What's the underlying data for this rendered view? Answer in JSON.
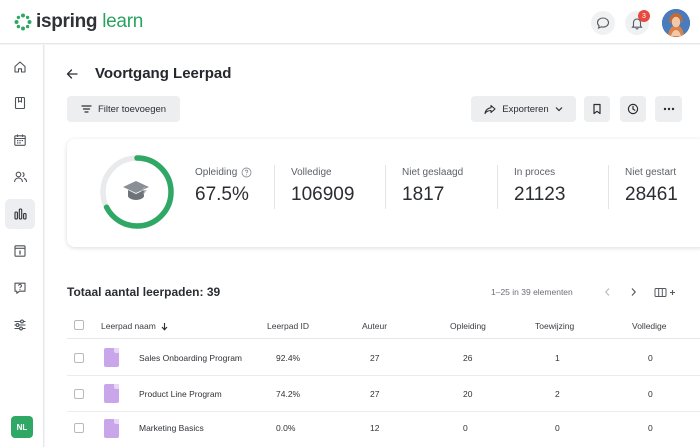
{
  "app": {
    "logo_brand": "ispring",
    "logo_product": "learn"
  },
  "header": {
    "notification_count": "3"
  },
  "sidebar": {
    "items": [
      {
        "icon": "home-icon"
      },
      {
        "icon": "book-icon"
      },
      {
        "icon": "calendar-icon"
      },
      {
        "icon": "users-icon"
      },
      {
        "icon": "bar-chart-icon",
        "active": true
      },
      {
        "icon": "info-card-icon"
      },
      {
        "icon": "help-icon"
      },
      {
        "icon": "sliders-icon"
      }
    ],
    "language": "NL"
  },
  "page": {
    "title": "Voortgang Leerpad",
    "filter_button": "Filter toevoegen",
    "export_button": "Exporteren"
  },
  "stats": {
    "progress_fraction": 0.675,
    "items": [
      {
        "label": "Opleiding",
        "value": "67.5%"
      },
      {
        "label": "Volledige",
        "value": "106909"
      },
      {
        "label": "Niet geslaagd",
        "value": "1817"
      },
      {
        "label": "In proces",
        "value": "21123"
      },
      {
        "label": "Niet gestart",
        "value": "28461"
      }
    ]
  },
  "table": {
    "total_label": "Totaal aantal leerpaden: 39",
    "pagination": "1–25 in 39 elementen",
    "columns": [
      "Leerpad naam",
      "Leerpad ID",
      "Auteur",
      "Opleiding",
      "Toewijzing",
      "Volledige"
    ],
    "rows": [
      {
        "name": "Sales Onboarding Program",
        "id": "92.4%",
        "author": "27",
        "training": "26",
        "assignment": "1",
        "complete": "0"
      },
      {
        "name": "Product Line Program",
        "id": "74.2%",
        "author": "27",
        "training": "20",
        "assignment": "2",
        "complete": "0"
      },
      {
        "name": "Marketing Basics",
        "id": "0.0%",
        "author": "12",
        "training": "0",
        "assignment": "0",
        "complete": "0"
      }
    ]
  }
}
